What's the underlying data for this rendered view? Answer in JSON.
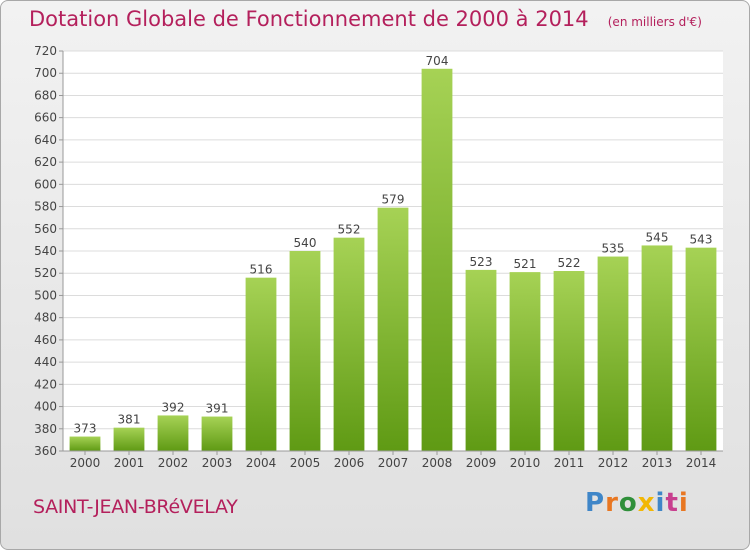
{
  "chart_data": {
    "type": "bar",
    "title": "Dotation Globale de Fonctionnement de 2000 à 2014",
    "subtitle": "(en milliers d'€)",
    "categories": [
      "2000",
      "2001",
      "2002",
      "2003",
      "2004",
      "2005",
      "2006",
      "2007",
      "2008",
      "2009",
      "2010",
      "2011",
      "2012",
      "2013",
      "2014"
    ],
    "values": [
      373,
      381,
      392,
      391,
      516,
      540,
      552,
      579,
      704,
      523,
      521,
      522,
      535,
      545,
      543
    ],
    "ylim": [
      360,
      720
    ],
    "yticks": [
      360,
      380,
      400,
      420,
      440,
      460,
      480,
      500,
      520,
      540,
      560,
      580,
      600,
      620,
      640,
      660,
      680,
      700,
      720
    ],
    "grid": true,
    "legend": "none",
    "bar_color_top": "#a6d255",
    "bar_color_bottom": "#5f9a14"
  },
  "footer": {
    "commune": "SAINT-JEAN-BRéVELAY",
    "brand": "Proxiti"
  },
  "colors": {
    "title": "#b4205c",
    "brand_letters": [
      "#3f86c8",
      "#e87722",
      "#2f8f3a",
      "#f2b705",
      "#3f86c8",
      "#c83f8f",
      "#e87722"
    ]
  }
}
